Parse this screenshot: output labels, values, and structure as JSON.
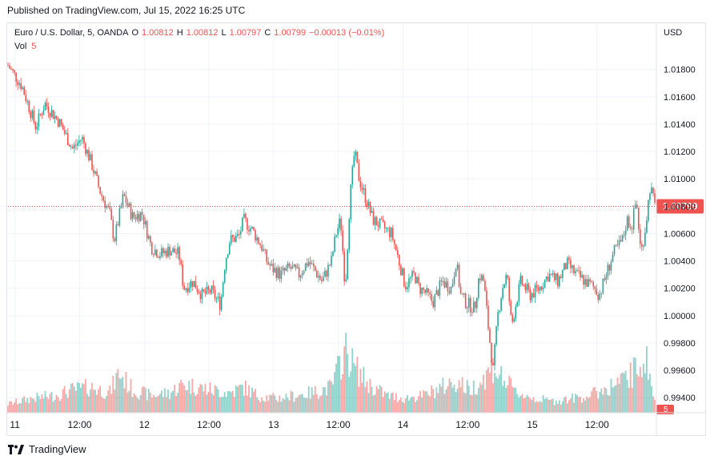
{
  "published": "Published on TradingView.com, Jul 15, 2022 16:25 UTC",
  "legend": {
    "symbol": "Euro / U.S. Dollar, 5, OANDA",
    "o_label": "O",
    "o_value": "1.00812",
    "h_label": "H",
    "h_value": "1.00812",
    "l_label": "L",
    "l_value": "1.00797",
    "c_label": "C",
    "c_value": "1.00799",
    "change": "−0.00013 (−0.01%)",
    "vol_label": "Vol",
    "vol_value": "5"
  },
  "footer": {
    "brand": "TradingView",
    "logo_icon": "tradingview-logo-icon"
  },
  "colors": {
    "up": "#26a69a",
    "down": "#ef5350",
    "grid": "#f0f3fa",
    "price_tag": "#ef5350",
    "text": "#131722"
  },
  "chart_data": {
    "type": "candlestick",
    "currency": "USD",
    "y_ticks": [
      "1.01800",
      "1.01600",
      "1.01400",
      "1.01200",
      "1.01000",
      "1.00800",
      "1.00600",
      "1.00400",
      "1.00200",
      "1.00000",
      "0.99800",
      "0.99600",
      "0.99400"
    ],
    "ylim": [
      0.9929,
      1.0205
    ],
    "x_ticks": [
      "11",
      "12:00",
      "12",
      "12:00",
      "13",
      "12:00",
      "14",
      "12:00",
      "15",
      "12:00"
    ],
    "last_price": "1.00799",
    "last_volume": "5",
    "price_path": [
      [
        0,
        1.0183
      ],
      [
        3,
        1.0168
      ],
      [
        6,
        1.0138
      ],
      [
        8,
        1.0155
      ],
      [
        11,
        1.0142
      ],
      [
        14,
        1.0122
      ],
      [
        16,
        1.013
      ],
      [
        18,
        1.0112
      ],
      [
        20,
        1.009
      ],
      [
        22,
        1.0075
      ],
      [
        23,
        1.0055
      ],
      [
        25,
        1.0088
      ],
      [
        27,
        1.0072
      ],
      [
        29,
        1.0075
      ],
      [
        31,
        1.005
      ],
      [
        33,
        1.0045
      ],
      [
        35,
        1.0048
      ],
      [
        37,
        1.0045
      ],
      [
        38,
        1.002
      ],
      [
        40,
        1.0025
      ],
      [
        42,
        1.0015
      ],
      [
        44,
        1.0018
      ],
      [
        46,
        1.0008
      ],
      [
        47,
        1.004
      ],
      [
        48,
        1.0055
      ],
      [
        50,
        1.0058
      ],
      [
        51,
        1.007
      ],
      [
        53,
        1.0062
      ],
      [
        55,
        1.005
      ],
      [
        56,
        1.004
      ],
      [
        57,
        1.0035
      ],
      [
        59,
        1.003
      ],
      [
        61,
        1.0035
      ],
      [
        63,
        1.003
      ],
      [
        65,
        1.004
      ],
      [
        66,
        1.0035
      ],
      [
        68,
        1.0025
      ],
      [
        70,
        1.004
      ],
      [
        71,
        1.006
      ],
      [
        72,
        1.007
      ],
      [
        73,
        1.002
      ],
      [
        74,
        1.0085
      ],
      [
        75,
        1.012
      ],
      [
        76,
        1.01
      ],
      [
        77,
        1.009
      ],
      [
        79,
        1.007
      ],
      [
        81,
        1.0065
      ],
      [
        83,
        1.006
      ],
      [
        84,
        1.0048
      ],
      [
        85,
        1.0035
      ],
      [
        86,
        1.0022
      ],
      [
        88,
        1.003
      ],
      [
        89,
        1.002
      ],
      [
        90,
        1.0018
      ],
      [
        92,
        1.001
      ],
      [
        94,
        1.0025
      ],
      [
        96,
        1.002
      ],
      [
        97,
        1.004
      ],
      [
        98,
        1.0015
      ],
      [
        99,
        1.001
      ],
      [
        101,
        1.0005
      ],
      [
        102,
        1.003
      ],
      [
        103,
        1.0025
      ],
      [
        104,
        0.999
      ],
      [
        105,
        0.996
      ],
      [
        106,
        1.0
      ],
      [
        107,
        1.002
      ],
      [
        108,
        1.003
      ],
      [
        109,
        0.9992
      ],
      [
        110,
        1.001
      ],
      [
        111,
        1.0025
      ],
      [
        113,
        1.0015
      ],
      [
        115,
        1.002
      ],
      [
        117,
        1.003
      ],
      [
        119,
        1.0025
      ],
      [
        121,
        1.0038
      ],
      [
        123,
        1.003
      ],
      [
        125,
        1.0025
      ],
      [
        127,
        1.002
      ],
      [
        128,
        1.0015
      ],
      [
        129,
        1.0025
      ],
      [
        131,
        1.0045
      ],
      [
        133,
        1.0055
      ],
      [
        134,
        1.007
      ],
      [
        135,
        1.0065
      ],
      [
        136,
        1.0085
      ],
      [
        137,
        1.0045
      ],
      [
        138,
        1.0065
      ],
      [
        139,
        1.0095
      ],
      [
        140,
        1.008
      ]
    ],
    "volume_profile": [
      [
        0,
        15
      ],
      [
        5,
        25
      ],
      [
        10,
        30
      ],
      [
        14,
        40
      ],
      [
        18,
        45
      ],
      [
        22,
        35
      ],
      [
        24,
        70
      ],
      [
        27,
        40
      ],
      [
        31,
        30
      ],
      [
        35,
        35
      ],
      [
        38,
        50
      ],
      [
        41,
        45
      ],
      [
        44,
        40
      ],
      [
        48,
        35
      ],
      [
        51,
        45
      ],
      [
        54,
        30
      ],
      [
        58,
        25
      ],
      [
        62,
        30
      ],
      [
        66,
        35
      ],
      [
        70,
        45
      ],
      [
        73,
        110
      ],
      [
        75,
        80
      ],
      [
        78,
        50
      ],
      [
        82,
        30
      ],
      [
        86,
        25
      ],
      [
        90,
        30
      ],
      [
        94,
        45
      ],
      [
        97,
        55
      ],
      [
        100,
        40
      ],
      [
        103,
        60
      ],
      [
        105,
        80
      ],
      [
        107,
        60
      ],
      [
        110,
        35
      ],
      [
        114,
        25
      ],
      [
        118,
        20
      ],
      [
        122,
        25
      ],
      [
        126,
        30
      ],
      [
        130,
        45
      ],
      [
        133,
        55
      ],
      [
        136,
        75
      ],
      [
        138,
        100
      ],
      [
        140,
        20
      ]
    ]
  }
}
